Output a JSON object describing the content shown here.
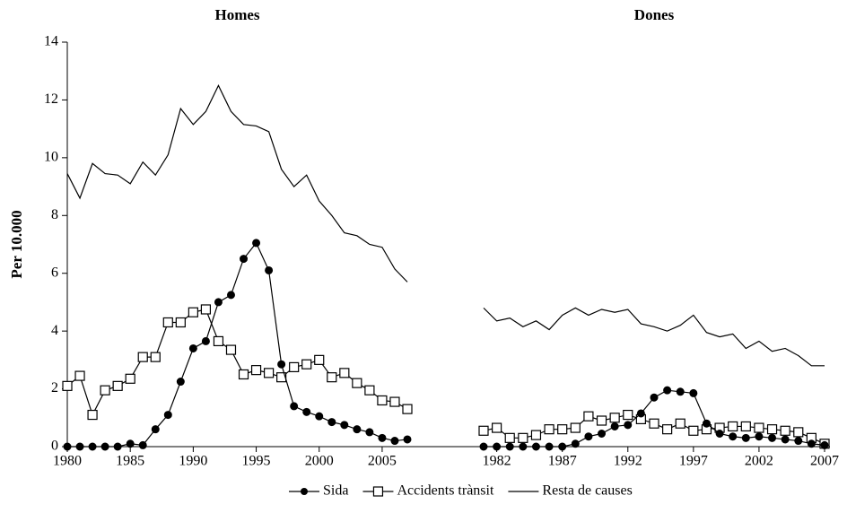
{
  "chart_data": [
    {
      "type": "line",
      "title": "Homes",
      "ylabel": "Per 10.000",
      "x": [
        1980,
        1981,
        1982,
        1983,
        1984,
        1985,
        1986,
        1987,
        1988,
        1989,
        1990,
        1991,
        1992,
        1993,
        1994,
        1995,
        1996,
        1997,
        1998,
        1999,
        2000,
        2001,
        2002,
        2003,
        2004,
        2005,
        2006,
        2007
      ],
      "xlim": [
        1980,
        2007
      ],
      "xticks": [
        1980,
        1985,
        1990,
        1995,
        2000,
        2005
      ],
      "ylim": [
        0,
        14
      ],
      "yticks": [
        0,
        2,
        4,
        6,
        8,
        10,
        12,
        14
      ],
      "series": [
        {
          "name": "Sida",
          "color": "#000000",
          "marker": "circle",
          "values": [
            0,
            0,
            0,
            0,
            0,
            0.1,
            0.05,
            0.6,
            1.1,
            2.25,
            3.4,
            3.65,
            5.0,
            5.25,
            6.5,
            7.05,
            6.1,
            2.85,
            1.4,
            1.2,
            1.05,
            0.85,
            0.75,
            0.6,
            0.5,
            0.3,
            0.2,
            0.25
          ]
        },
        {
          "name": "Accidents trànsit",
          "color": "#000000",
          "marker": "square",
          "values": [
            2.1,
            2.45,
            1.1,
            1.95,
            2.1,
            2.35,
            3.1,
            3.1,
            4.3,
            4.3,
            4.65,
            4.75,
            3.65,
            3.35,
            2.5,
            2.65,
            2.55,
            2.4,
            2.75,
            2.85,
            3.0,
            2.4,
            2.55,
            2.2,
            1.95,
            1.6,
            1.55,
            1.3
          ]
        },
        {
          "name": "Resta de causes",
          "color": "#000000",
          "marker": "none",
          "values": [
            9.45,
            8.6,
            9.8,
            9.45,
            9.4,
            9.1,
            9.85,
            9.4,
            10.1,
            11.7,
            11.15,
            11.6,
            12.5,
            11.6,
            11.15,
            11.1,
            10.9,
            9.6,
            9.0,
            9.4,
            8.5,
            8.0,
            7.4,
            7.3,
            7.0,
            6.9,
            6.15,
            5.7
          ]
        }
      ]
    },
    {
      "type": "line",
      "title": "Dones",
      "x": [
        1981,
        1982,
        1983,
        1984,
        1985,
        1986,
        1987,
        1988,
        1989,
        1990,
        1991,
        1992,
        1993,
        1994,
        1995,
        1996,
        1997,
        1998,
        1999,
        2000,
        2001,
        2002,
        2003,
        2004,
        2005,
        2006,
        2007
      ],
      "xlim": [
        1981,
        2007
      ],
      "xticks": [
        1982,
        1987,
        1992,
        1997,
        2002,
        2007
      ],
      "ylim": [
        0,
        14
      ],
      "series": [
        {
          "color": "#000000",
          "marker": "circle",
          "values": [
            0,
            0,
            0,
            0,
            0,
            0,
            0,
            0.1,
            0.35,
            0.45,
            0.7,
            0.75,
            1.15,
            1.7,
            1.95,
            1.9,
            1.85,
            0.8,
            0.45,
            0.35,
            0.3,
            0.35,
            0.3,
            0.25,
            0.2,
            0.1,
            0.05
          ]
        },
        {
          "color": "#000000",
          "marker": "square",
          "values": [
            0.55,
            0.65,
            0.3,
            0.3,
            0.4,
            0.6,
            0.6,
            0.65,
            1.05,
            0.9,
            1.0,
            1.1,
            0.95,
            0.8,
            0.6,
            0.8,
            0.55,
            0.6,
            0.65,
            0.7,
            0.7,
            0.65,
            0.6,
            0.55,
            0.5,
            0.3,
            0.1
          ]
        },
        {
          "color": "#000000",
          "marker": "none",
          "values": [
            4.8,
            4.35,
            4.45,
            4.15,
            4.35,
            4.05,
            4.55,
            4.8,
            4.55,
            4.75,
            4.65,
            4.75,
            4.25,
            4.15,
            4.0,
            4.2,
            4.55,
            3.95,
            3.8,
            3.9,
            3.4,
            3.65,
            3.3,
            3.4,
            3.15,
            2.8,
            2.8
          ]
        }
      ]
    }
  ]
}
